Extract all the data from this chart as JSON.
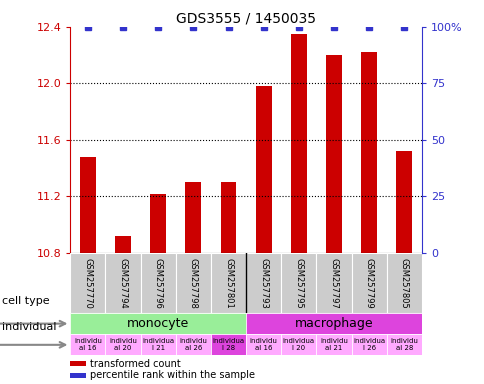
{
  "title": "GDS3555 / 1450035",
  "samples": [
    "GSM257770",
    "GSM257794",
    "GSM257796",
    "GSM257798",
    "GSM257801",
    "GSM257793",
    "GSM257795",
    "GSM257797",
    "GSM257799",
    "GSM257805"
  ],
  "bar_values": [
    11.48,
    10.92,
    11.22,
    11.3,
    11.3,
    11.98,
    12.35,
    12.2,
    12.22,
    11.52
  ],
  "percentile_values": [
    100,
    100,
    100,
    100,
    100,
    100,
    100,
    100,
    100,
    100
  ],
  "bar_color": "#cc0000",
  "percentile_color": "#3333cc",
  "ylim_left": [
    10.8,
    12.4
  ],
  "ylim_right": [
    0,
    100
  ],
  "yticks_left": [
    10.8,
    11.2,
    11.6,
    12.0,
    12.4
  ],
  "yticks_right": [
    0,
    25,
    50,
    75,
    100
  ],
  "grid_lines": [
    11.2,
    11.6,
    12.0
  ],
  "cell_types": [
    {
      "label": "monocyte",
      "start": 0,
      "end": 5,
      "color": "#99ee99"
    },
    {
      "label": "macrophage",
      "start": 5,
      "end": 10,
      "color": "#dd44dd"
    }
  ],
  "indiv_colors": [
    "#ffaaff",
    "#ffaaff",
    "#ffaaff",
    "#ffaaff",
    "#dd44dd",
    "#ffaaff",
    "#ffaaff",
    "#ffaaff",
    "#ffaaff",
    "#ffaaff"
  ],
  "indiv_labels": [
    "individu\nal 16",
    "individu\nal 20",
    "individua\nl 21",
    "individu\nal 26",
    "individua\nl 28",
    "individu\nal 16",
    "individua\nl 20",
    "individu\nal 21",
    "individua\nl 26",
    "individu\nal 28"
  ],
  "sample_bg": "#cccccc",
  "legend_items": [
    {
      "label": "transformed count",
      "color": "#cc0000"
    },
    {
      "label": "percentile rank within the sample",
      "color": "#3333cc"
    }
  ],
  "left_labels": [
    "cell type",
    "individual"
  ],
  "arrow_color": "#888888"
}
